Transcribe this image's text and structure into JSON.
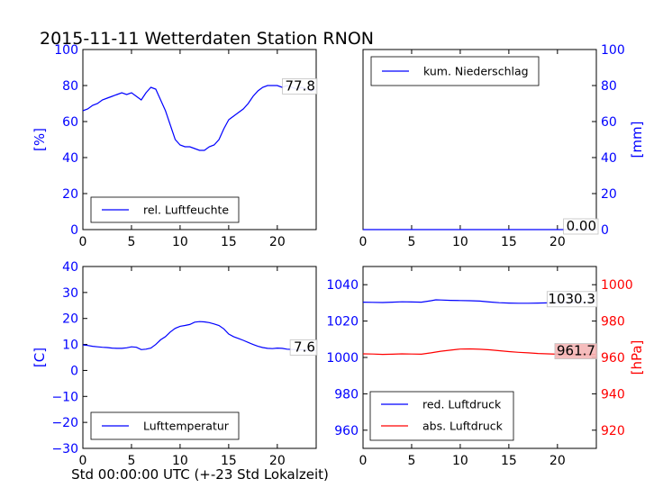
{
  "figure": {
    "title": "2015-11-11 Wetterdaten Station RNON",
    "xlabel": "Std 00:00:00 UTC (+-23 Std Lokalzeit)"
  },
  "colors": {
    "blue": "#0000ff",
    "red": "#ff0000",
    "axis": "#000000",
    "frame": "#000000"
  },
  "chart_data": [
    {
      "id": "humidity",
      "type": "line",
      "ylabel": "[%]",
      "ylabel_color": "#0000ff",
      "yaxis_side": "left",
      "xlim": [
        0,
        24
      ],
      "ylim": [
        0,
        100
      ],
      "xticks": [
        0,
        5,
        10,
        15,
        20
      ],
      "yticks": [
        0,
        20,
        40,
        60,
        80,
        100
      ],
      "legend": {
        "placement": "lower-left",
        "entries": [
          "rel. Luftfeuchte"
        ]
      },
      "last_value_label": "77.8",
      "series": [
        {
          "name": "rel. Luftfeuchte",
          "color": "#0000ff",
          "x": [
            0,
            0.5,
            1,
            1.5,
            2,
            2.5,
            3,
            3.5,
            4,
            4.5,
            5,
            5.5,
            6,
            6.5,
            7,
            7.5,
            8,
            8.5,
            9,
            9.5,
            10,
            10.5,
            11,
            11.5,
            12,
            12.5,
            13,
            13.5,
            14,
            14.5,
            15,
            15.5,
            16,
            16.5,
            17,
            17.5,
            18,
            18.5,
            19,
            19.5,
            20,
            20.5,
            21,
            21.5,
            22,
            22.5,
            23,
            23.5,
            23.9
          ],
          "y": [
            66,
            67,
            69,
            70,
            72,
            73,
            74,
            75,
            76,
            75,
            76,
            74,
            72,
            76,
            79,
            78,
            72,
            66,
            58,
            50,
            47,
            46,
            46,
            45,
            44,
            44,
            46,
            47,
            50,
            56,
            61,
            63,
            65,
            67,
            70,
            74,
            77,
            79,
            80,
            80,
            80,
            79,
            80,
            79,
            78,
            79,
            78,
            77,
            77.8
          ]
        }
      ]
    },
    {
      "id": "precipitation",
      "type": "line",
      "ylabel": "[mm]",
      "ylabel_color": "#0000ff",
      "yaxis_side": "right",
      "xlim": [
        0,
        24
      ],
      "ylim": [
        0,
        100
      ],
      "xticks": [
        0,
        5,
        10,
        15,
        20
      ],
      "yticks": [
        0,
        20,
        40,
        60,
        80,
        100
      ],
      "legend": {
        "placement": "upper-left",
        "entries": [
          "kum. Niederschlag"
        ]
      },
      "last_value_label": "0.00",
      "series": [
        {
          "name": "kum. Niederschlag",
          "color": "#0000ff",
          "x": [
            0,
            24
          ],
          "y": [
            0,
            0
          ]
        }
      ]
    },
    {
      "id": "temperature",
      "type": "line",
      "ylabel": "[C]",
      "ylabel_color": "#0000ff",
      "yaxis_side": "left",
      "xlim": [
        0,
        24
      ],
      "ylim": [
        -30,
        40
      ],
      "xticks": [
        0,
        5,
        10,
        15,
        20
      ],
      "yticks": [
        -30,
        -20,
        -10,
        0,
        10,
        20,
        30,
        40
      ],
      "legend": {
        "placement": "lower-left",
        "entries": [
          "Lufttemperatur"
        ]
      },
      "last_value_label": "7.6",
      "series": [
        {
          "name": "Lufttemperatur",
          "color": "#0000ff",
          "x": [
            0,
            0.5,
            1,
            1.5,
            2,
            2.5,
            3,
            3.5,
            4,
            4.5,
            5,
            5.5,
            6,
            6.5,
            7,
            7.5,
            8,
            8.5,
            9,
            9.5,
            10,
            10.5,
            11,
            11.5,
            12,
            12.5,
            13,
            13.5,
            14,
            14.5,
            15,
            15.5,
            16,
            16.5,
            17,
            17.5,
            18,
            18.5,
            19,
            19.5,
            20,
            20.5,
            21,
            21.5,
            22,
            22.5,
            23,
            23.5,
            23.9
          ],
          "y": [
            9.8,
            9.6,
            9.3,
            9.1,
            8.9,
            8.8,
            8.6,
            8.5,
            8.5,
            8.7,
            9.1,
            8.9,
            8.0,
            8.2,
            8.6,
            10.0,
            11.8,
            13.0,
            14.8,
            16.2,
            17.0,
            17.3,
            17.7,
            18.6,
            18.8,
            18.7,
            18.4,
            17.9,
            17.3,
            16.0,
            14.0,
            13.0,
            12.3,
            11.6,
            10.8,
            10.0,
            9.3,
            8.8,
            8.5,
            8.4,
            8.6,
            8.5,
            8.2,
            8.1,
            8.0,
            7.9,
            7.8,
            7.7,
            7.6
          ]
        }
      ]
    },
    {
      "id": "pressure",
      "type": "line",
      "ylabel": "[hPa]",
      "ylabel_color": "#ff0000",
      "yaxis_side": "dual",
      "xlim": [
        0,
        24
      ],
      "ylim_left": [
        950,
        1050
      ],
      "ylim_right": [
        910,
        1010
      ],
      "xticks": [
        0,
        5,
        10,
        15,
        20
      ],
      "yticks_left": [
        960,
        980,
        1000,
        1020,
        1040
      ],
      "yticks_right": [
        920,
        940,
        960,
        980,
        1000
      ],
      "legend": {
        "placement": "lower-left",
        "entries": [
          "red. Luftdruck",
          "abs. Luftdruck"
        ]
      },
      "last_value_labels": [
        "1030.3",
        "961.7"
      ],
      "series": [
        {
          "name": "red. Luftdruck",
          "color": "#0000ff",
          "axis": "left",
          "x": [
            0,
            1,
            2,
            3,
            4,
            5,
            6,
            7,
            7.5,
            8,
            9,
            10,
            11,
            12,
            13,
            14,
            15,
            16,
            17,
            18,
            19,
            20,
            21,
            22,
            23,
            23.9
          ],
          "y": [
            1030.4,
            1030.3,
            1030.2,
            1030.4,
            1030.6,
            1030.5,
            1030.4,
            1031.2,
            1031.7,
            1031.6,
            1031.4,
            1031.3,
            1031.2,
            1031.0,
            1030.5,
            1030.1,
            1029.9,
            1029.8,
            1029.8,
            1029.9,
            1030.0,
            1030.1,
            1030.2,
            1030.3,
            1030.3,
            1030.3
          ]
        },
        {
          "name": "abs. Luftdruck",
          "color": "#ff0000",
          "axis": "right",
          "x": [
            0,
            1,
            2,
            3,
            4,
            5,
            6,
            7,
            8,
            9,
            10,
            11,
            12,
            13,
            14,
            15,
            16,
            17,
            18,
            19,
            20,
            21,
            22,
            23,
            23.9
          ],
          "y": [
            962.0,
            961.9,
            961.7,
            961.8,
            962.0,
            961.9,
            961.8,
            962.5,
            963.4,
            964.0,
            964.6,
            964.7,
            964.5,
            964.2,
            963.7,
            963.2,
            962.8,
            962.5,
            962.2,
            962.0,
            961.8,
            961.7,
            961.7,
            961.7,
            961.7
          ]
        }
      ]
    }
  ]
}
